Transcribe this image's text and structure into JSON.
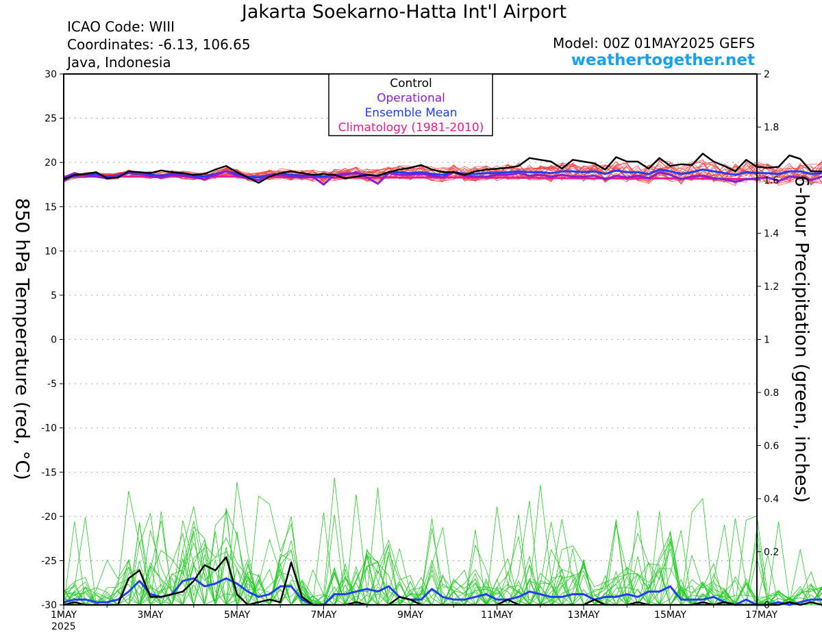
{
  "header": {
    "title": "Jakarta Soekarno-Hatta Int'l Airport",
    "icao": "ICAO Code: WIII",
    "coordinates": "Coordinates: -6.13, 106.65",
    "region": "Java, Indonesia",
    "model": "Model: 00Z 01MAY2025 GEFS",
    "site": "weathertogether.net"
  },
  "colors": {
    "control": "#000000",
    "operational": "#8a1ed6",
    "ensemble_mean": "#1f3ff0",
    "climatology": "#ee1a8c",
    "members_temp": "#f23a3a",
    "members_precip": "#22cc22",
    "site": "#1aa1ee"
  },
  "chart_data": {
    "type": "line",
    "ylabel_left": "850 hPa Temperature (red, °C)",
    "ylabel_right": "6-hour Precipitation (green, inches)",
    "ylim_left": [
      -30,
      30
    ],
    "ylim_right": [
      0,
      2
    ],
    "yticks_left": [
      "30",
      "25",
      "20",
      "15",
      "10",
      "5",
      "0",
      "-5",
      "-10",
      "-15",
      "-20",
      "-25",
      "-30"
    ],
    "yticks_right": [
      "2",
      "1.8",
      "1.6",
      "1.4",
      "1.2",
      "1",
      "0.8",
      "0.6",
      "0.4",
      "0.2",
      "0"
    ],
    "x_range_days": [
      0,
      16
    ],
    "x_ticks": [
      {
        "day": 0,
        "label": "1MAY"
      },
      {
        "day": 2,
        "label": "3MAY"
      },
      {
        "day": 4,
        "label": "5MAY"
      },
      {
        "day": 6,
        "label": "7MAY"
      },
      {
        "day": 8,
        "label": "9MAY"
      },
      {
        "day": 10,
        "label": "11MAY"
      },
      {
        "day": 12,
        "label": "13MAY"
      },
      {
        "day": 14,
        "label": "15MAY"
      },
      {
        "day": 16,
        "label": "17MAY"
      }
    ],
    "x_sublabel": "2025",
    "grid": true,
    "legend": {
      "position": "top-center",
      "entries": [
        {
          "label": "Control",
          "color": "#000000"
        },
        {
          "label": "Operational",
          "color": "#8a1ed6"
        },
        {
          "label": "Ensemble Mean",
          "color": "#1f3ff0"
        },
        {
          "label": "Climatology (1981-2010)",
          "color": "#ee1a8c"
        }
      ]
    },
    "step_days": 0.25,
    "temperature": {
      "control": [
        18.1,
        18.6,
        18.7,
        18.9,
        18.2,
        18.3,
        19.0,
        18.9,
        18.8,
        19.1,
        18.9,
        18.8,
        18.6,
        18.7,
        19.2,
        19.6,
        18.9,
        18.3,
        17.7,
        18.4,
        18.8,
        19.0,
        18.8,
        18.6,
        18.7,
        18.6,
        18.2,
        18.4,
        18.6,
        18.5,
        18.9,
        19.2,
        19.4,
        19.7,
        19.2,
        18.9,
        18.9,
        18.6,
        19.0,
        19.2,
        19.3,
        19.4,
        19.6,
        20.5,
        20.3,
        20.1,
        19.3,
        20.3,
        20.1,
        19.9,
        19.2,
        20.6,
        20.1,
        20.1,
        19.3,
        20.5,
        19.6,
        19.8,
        19.7,
        21.0,
        20.1,
        19.6,
        19.0,
        20.3,
        19.5,
        19.4,
        19.5,
        20.8,
        20.4,
        19.0,
        19.0,
        20.1,
        19.5,
        18.6,
        18.8,
        18.9,
        19.6,
        18.3,
        18.9
      ],
      "operational": [
        18.3,
        18.8,
        18.5,
        18.4,
        18.2,
        18.6,
        18.9,
        18.8,
        18.4,
        18.3,
        18.6,
        18.5,
        18.3,
        18.1,
        18.6,
        19.0,
        18.5,
        18.2,
        18.0,
        18.6,
        18.6,
        18.4,
        18.3,
        18.4,
        17.5,
        18.6,
        18.6,
        18.9,
        18.3,
        17.6,
        18.8,
        18.6,
        18.6,
        18.7,
        18.5,
        18.3,
        18.9,
        18.5,
        18.4,
        18.4,
        18.6,
        18.6,
        18.8,
        18.5,
        18.6,
        18.4,
        18.6,
        18.4,
        18.4,
        18.5,
        18.1,
        18.5,
        18.3,
        18.5,
        18.2,
        18.9,
        18.6,
        18.1,
        18.4,
        18.5,
        18.2,
        18.1,
        17.8,
        18.1,
        18.2,
        18.3,
        17.9,
        18.4,
        18.3,
        18.0,
        18.4,
        18.4,
        18.3,
        18.8,
        19.1,
        19.4,
        19.4,
        19.3,
        19.0
      ],
      "ensemble_mean": [
        18.0,
        18.5,
        18.6,
        18.7,
        18.4,
        18.5,
        18.8,
        18.7,
        18.6,
        18.5,
        18.7,
        18.6,
        18.5,
        18.4,
        18.7,
        19.0,
        18.7,
        18.4,
        18.3,
        18.6,
        18.7,
        18.6,
        18.5,
        18.5,
        18.4,
        18.6,
        18.7,
        18.8,
        18.6,
        18.5,
        18.8,
        18.9,
        18.8,
        18.9,
        18.7,
        18.6,
        18.9,
        18.7,
        18.7,
        18.8,
        18.8,
        18.9,
        19.0,
        18.9,
        18.9,
        18.8,
        19.0,
        19.0,
        18.9,
        19.0,
        18.7,
        19.1,
        18.9,
        18.9,
        18.7,
        19.2,
        19.0,
        18.7,
        18.9,
        19.2,
        19.0,
        18.8,
        18.6,
        18.9,
        18.8,
        18.8,
        18.7,
        19.0,
        19.0,
        18.7,
        18.8,
        18.9,
        18.9,
        18.8,
        19.0,
        19.2,
        19.2,
        18.9,
        18.7
      ],
      "climatology": [
        18.4,
        18.4,
        18.4,
        18.3,
        18.3,
        18.3,
        18.2,
        18.2,
        18.1
      ]
    },
    "precipitation": {
      "control": [
        0,
        0.01,
        0,
        0,
        0,
        0,
        0.1,
        0.13,
        0.03,
        0.03,
        0.04,
        0.05,
        0.09,
        0.15,
        0.13,
        0.18,
        0.04,
        0,
        0.01,
        0.02,
        0.01,
        0.16,
        0.03,
        0,
        0,
        0,
        0,
        0.01,
        0,
        0,
        0,
        0.03,
        0.02,
        0,
        0,
        0,
        0,
        0,
        0,
        0,
        0,
        0.02,
        0,
        0,
        0,
        0,
        0,
        0,
        0,
        0.02,
        0,
        0,
        0,
        0.01,
        0,
        0,
        0,
        0,
        0,
        0.01,
        0,
        0.01,
        0,
        0,
        0,
        0,
        0,
        0.01,
        0,
        0.01,
        0,
        0.03,
        0,
        0,
        0.01,
        0.02,
        0.02,
        0.14,
        0
      ],
      "ensemble_mean": [
        0.01,
        0.02,
        0.02,
        0.01,
        0.01,
        0.02,
        0.05,
        0.09,
        0.04,
        0.03,
        0.04,
        0.09,
        0.1,
        0.07,
        0.08,
        0.1,
        0.08,
        0.05,
        0.03,
        0.04,
        0.07,
        0.07,
        0.02,
        0,
        0,
        0.04,
        0.04,
        0.05,
        0.06,
        0.05,
        0.07,
        0.03,
        0.02,
        0.02,
        0.06,
        0.03,
        0.02,
        0.02,
        0.03,
        0.04,
        0.02,
        0.02,
        0.03,
        0.05,
        0.04,
        0.03,
        0.03,
        0.04,
        0.04,
        0.02,
        0.03,
        0.03,
        0.04,
        0.03,
        0.05,
        0.05,
        0.07,
        0.02,
        0.02,
        0.02,
        0.03,
        0.01,
        0,
        0.02,
        0,
        0,
        0.01,
        0,
        0.01,
        0.02,
        0.02,
        0.05,
        0.02,
        0.03,
        0.05,
        0.06,
        0.07,
        0.03,
        0.01
      ],
      "members_peak_max": 0.75
    }
  }
}
